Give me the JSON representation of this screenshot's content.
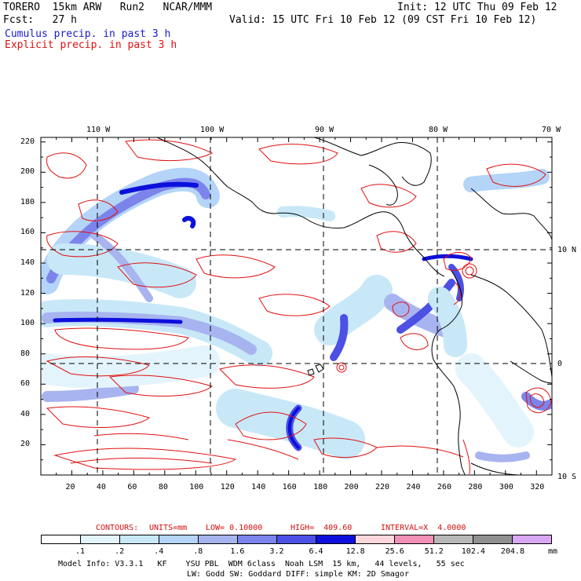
{
  "header": {
    "model": "TORERO  15km ARW   Run2   NCAR/MMM",
    "init": "Init: 12 UTC Thu 09 Feb 12",
    "fcst": "Fcst:   27 h",
    "valid": "Valid: 15 UTC Fri 10 Feb 12 (09 CST Fri 10 Feb 12)",
    "cumulus": "Cumulus precip. in past 3 h",
    "explicit": "Explicit precip. in past 3 h"
  },
  "map": {
    "lon_labels": [
      "110 W",
      "100 W",
      "90 W",
      "80 W",
      "70 W"
    ],
    "lat_labels": [
      "10 N",
      "0",
      "10 S"
    ],
    "x_ticks": [
      "20",
      "40",
      "60",
      "80",
      "100",
      "120",
      "140",
      "160",
      "180",
      "200",
      "220",
      "240",
      "260",
      "280",
      "300",
      "320"
    ],
    "y_ticks": [
      "220",
      "200",
      "180",
      "160",
      "140",
      "120",
      "100",
      "80",
      "60",
      "40",
      "20"
    ]
  },
  "contours": {
    "label": "CONTOURS:",
    "units": "UNITS=mm",
    "low": "LOW= 0.10000",
    "high": "HIGH=  409.60",
    "interval": "INTERVAL=X  4.0000"
  },
  "legend": {
    "labels": [
      ".1",
      ".2",
      ".4",
      ".8",
      "1.6",
      "3.2",
      "6.4",
      "12.8",
      "25.6",
      "51.2",
      "102.4",
      "204.8"
    ],
    "unit": "mm",
    "colors": [
      "#ffffff",
      "#e4f4fc",
      "#c8e8f8",
      "#b4d4f8",
      "#a8b4f0",
      "#7c84ec",
      "#4c50e4",
      "#0c10dc",
      "#fcd8dc",
      "#f090b8",
      "#b8b8b8",
      "#909090",
      "#d8a8f4"
    ]
  },
  "footer": {
    "line1": "Model Info: V3.3.1   KF    YSU PBL  WDM 6class  Noah LSM  15 km,   44 levels,   55 sec",
    "line2": "LW: Godd SW: Goddard DIFF: simple KM: 2D Smagor"
  }
}
